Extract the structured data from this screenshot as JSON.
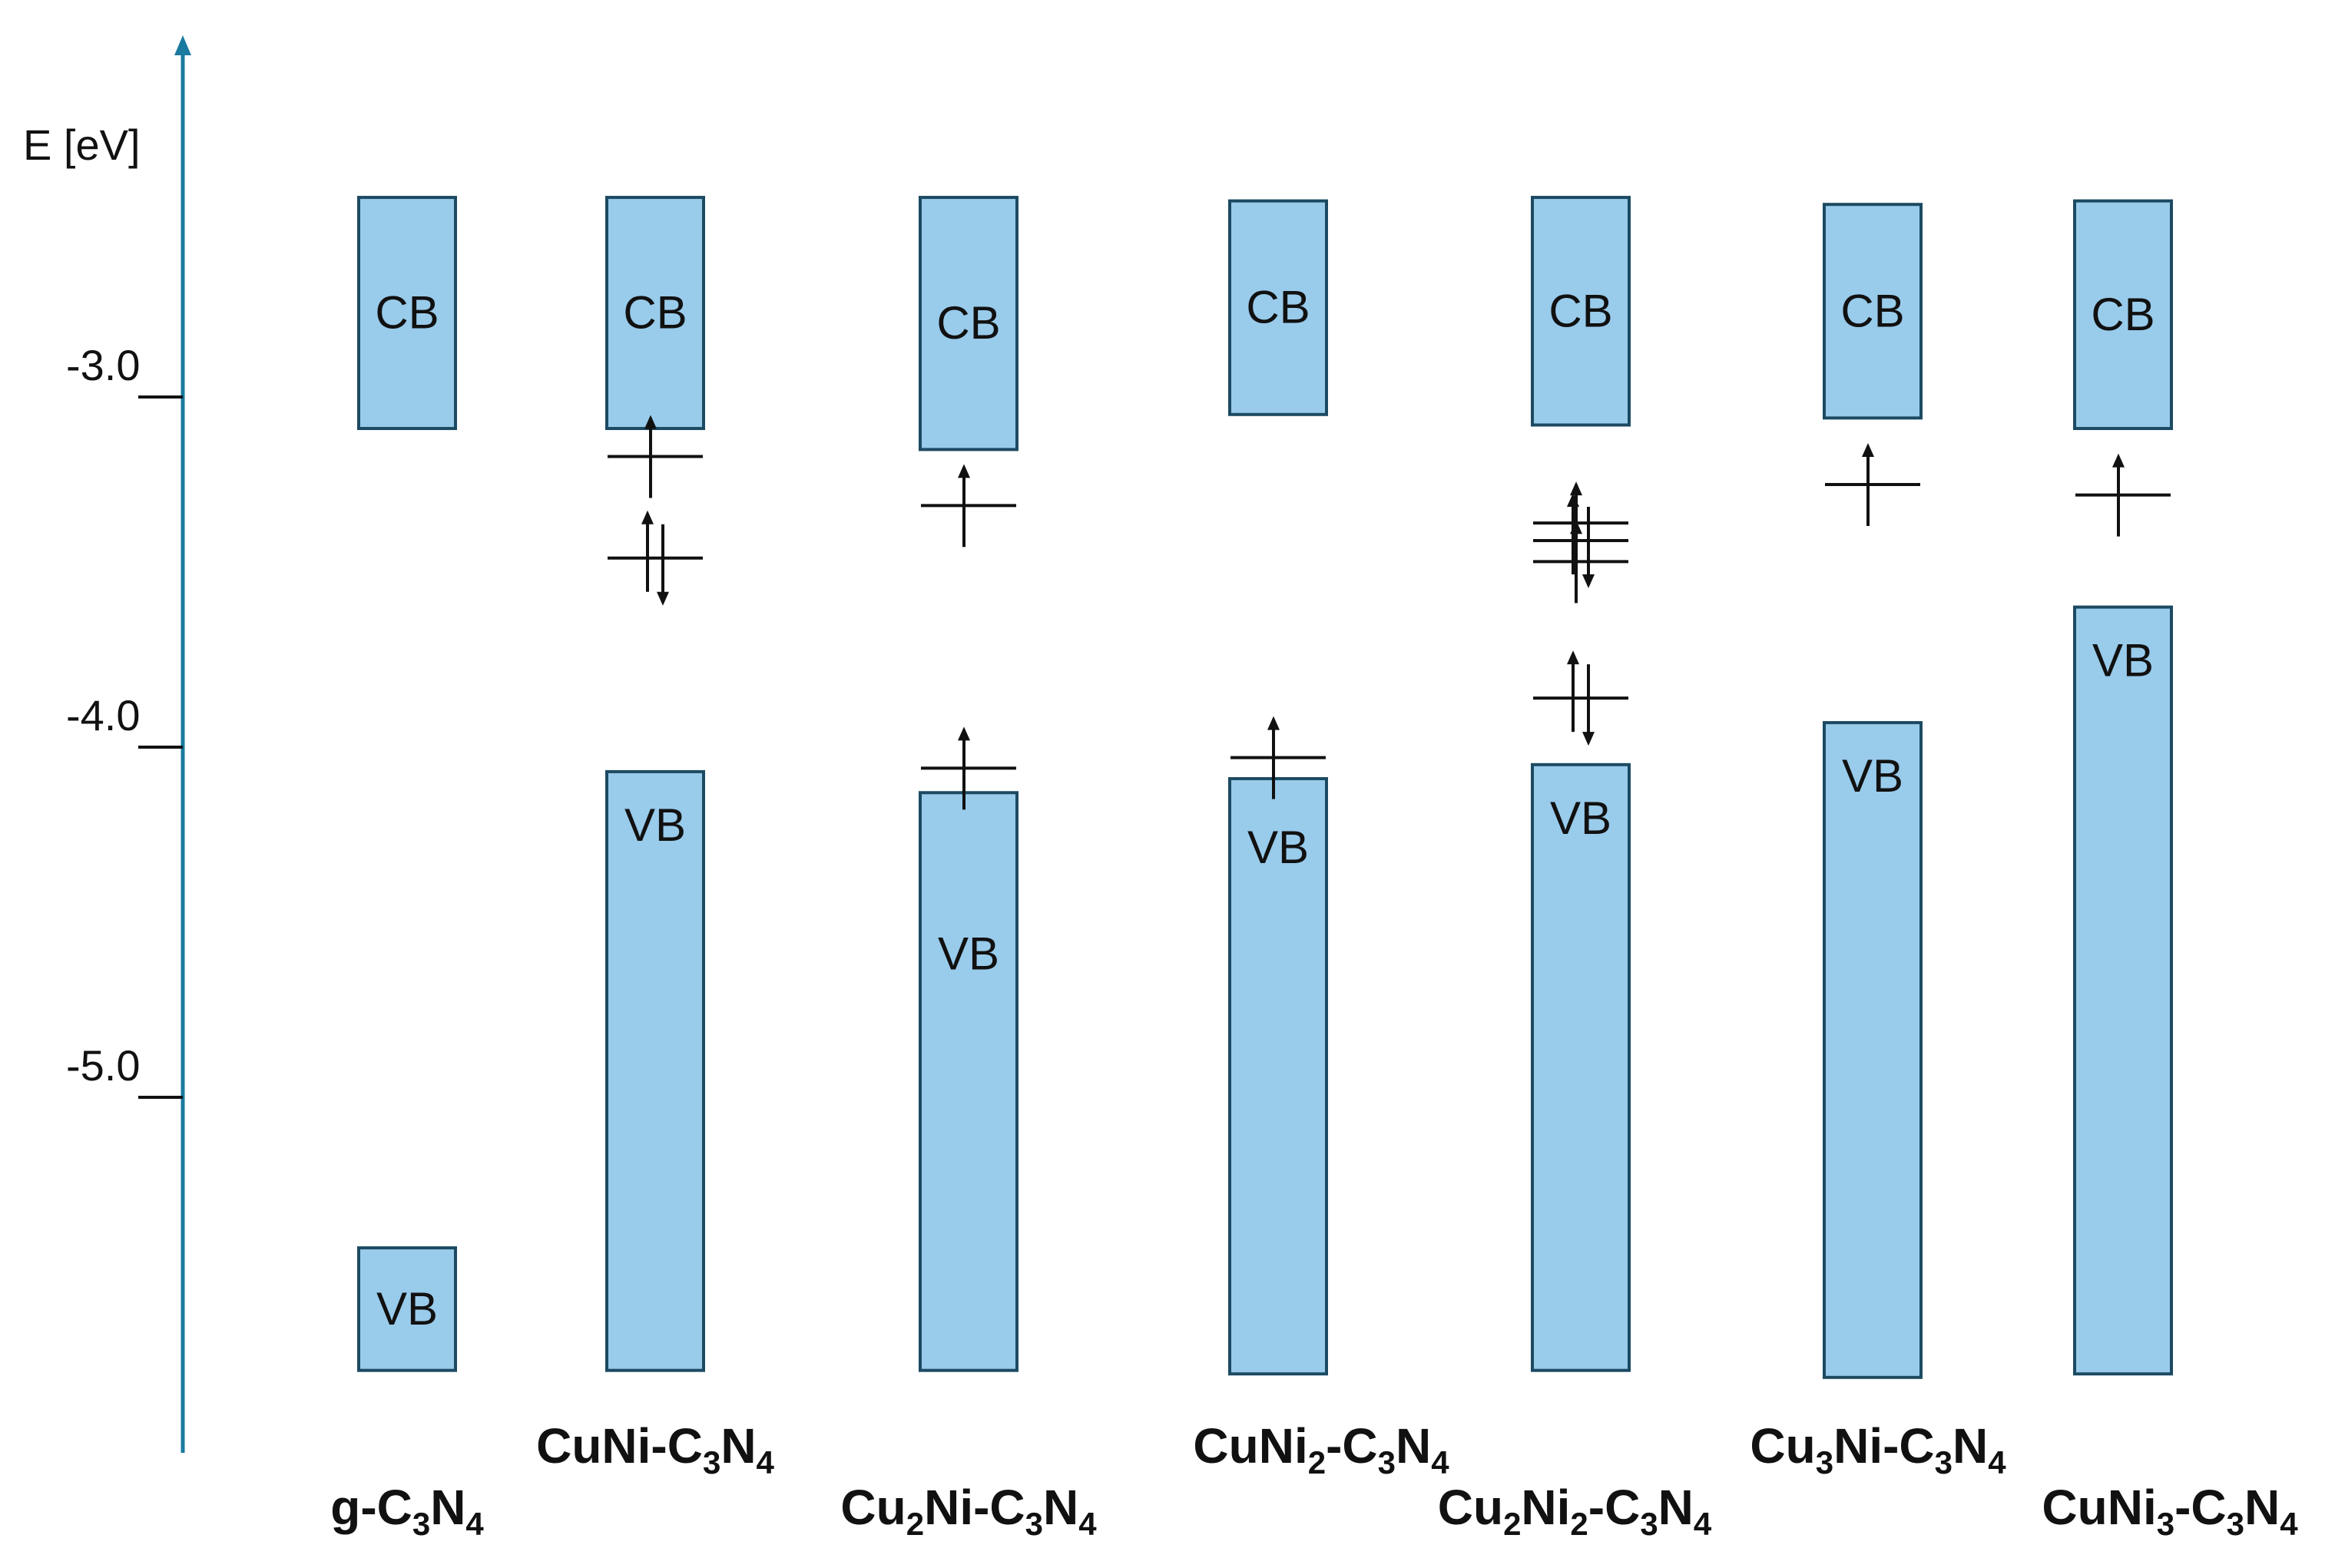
{
  "axis": {
    "label": "E [eV]",
    "color": "#1a7aa0",
    "ticks": [
      {
        "value": -3.0,
        "label": "-3.0"
      },
      {
        "value": -4.0,
        "label": "-4.0"
      },
      {
        "value": -5.0,
        "label": "-5.0"
      }
    ]
  },
  "colors": {
    "band_fill": "#99cbeb",
    "band_stroke": "#1c4a62",
    "level": "#111111"
  },
  "materials": [
    {
      "label": [
        {
          "t": "g-C"
        },
        {
          "t": "3",
          "sub": true
        },
        {
          "t": "N"
        },
        {
          "t": "4",
          "sub": true
        }
      ],
      "cb": {
        "label": "CB",
        "top": -2.43,
        "bottom": -3.09
      },
      "vb": {
        "label": "VB",
        "top": -5.43,
        "bottom": -5.78
      },
      "levels": []
    },
    {
      "label": [
        {
          "t": "CuNi-C"
        },
        {
          "t": "3",
          "sub": true
        },
        {
          "t": "N"
        },
        {
          "t": "4",
          "sub": true
        }
      ],
      "cb": {
        "label": "CB",
        "top": -2.43,
        "bottom": -3.09
      },
      "vb": {
        "label": "VB",
        "top": -4.07,
        "bottom": -5.78
      },
      "levels": [
        {
          "energy": -3.17,
          "spin": "up"
        },
        {
          "energy": -3.46,
          "spin": "pair"
        }
      ]
    },
    {
      "label": [
        {
          "t": "Cu"
        },
        {
          "t": "2",
          "sub": true
        },
        {
          "t": "Ni-C"
        },
        {
          "t": "3",
          "sub": true
        },
        {
          "t": "N"
        },
        {
          "t": "4",
          "sub": true
        }
      ],
      "cb": {
        "label": "CB",
        "top": -2.43,
        "bottom": -3.15
      },
      "vb": {
        "label": "VB",
        "top": -4.13,
        "bottom": -5.78
      },
      "levels": [
        {
          "energy": -3.31,
          "spin": "up"
        },
        {
          "energy": -4.06,
          "spin": "up"
        }
      ]
    },
    {
      "label": [
        {
          "t": "CuNi"
        },
        {
          "t": "2",
          "sub": true
        },
        {
          "t": "-C"
        },
        {
          "t": "3",
          "sub": true
        },
        {
          "t": "N"
        },
        {
          "t": "4",
          "sub": true
        }
      ],
      "cb": {
        "label": "CB",
        "top": -2.44,
        "bottom": -3.05
      },
      "vb": {
        "label": "VB",
        "top": -4.09,
        "bottom": -5.79
      },
      "levels": [
        {
          "energy": -4.03,
          "spin": "up"
        }
      ]
    },
    {
      "label": [
        {
          "t": "Cu"
        },
        {
          "t": "2",
          "sub": true
        },
        {
          "t": "Ni"
        },
        {
          "t": "2",
          "sub": true
        },
        {
          "t": "-C"
        },
        {
          "t": "3",
          "sub": true
        },
        {
          "t": "N"
        },
        {
          "t": "4",
          "sub": true
        }
      ],
      "cb": {
        "label": "CB",
        "top": -2.43,
        "bottom": -3.08
      },
      "vb": {
        "label": "VB",
        "top": -4.05,
        "bottom": -5.78
      },
      "levels": [
        {
          "energy": -3.36,
          "spin": "up"
        },
        {
          "energy": -3.41,
          "spin": "pair"
        },
        {
          "energy": -3.47,
          "spin": "up"
        },
        {
          "energy": -3.86,
          "spin": "pair"
        }
      ]
    },
    {
      "label": [
        {
          "t": "Cu"
        },
        {
          "t": "3",
          "sub": true
        },
        {
          "t": "Ni-C"
        },
        {
          "t": "3",
          "sub": true
        },
        {
          "t": "N"
        },
        {
          "t": "4",
          "sub": true
        }
      ],
      "cb": {
        "label": "CB",
        "top": -2.45,
        "bottom": -3.06
      },
      "vb": {
        "label": "VB",
        "top": -3.93,
        "bottom": -5.8
      },
      "levels": [
        {
          "energy": -3.25,
          "spin": "up"
        }
      ]
    },
    {
      "label": [
        {
          "t": "CuNi"
        },
        {
          "t": "3",
          "sub": true
        },
        {
          "t": "-C"
        },
        {
          "t": "3",
          "sub": true
        },
        {
          "t": "N"
        },
        {
          "t": "4",
          "sub": true
        }
      ],
      "cb": {
        "label": "CB",
        "top": -2.44,
        "bottom": -3.09
      },
      "vb": {
        "label": "VB",
        "top": -3.6,
        "bottom": -5.79
      },
      "levels": [
        {
          "energy": -3.28,
          "spin": "up"
        }
      ]
    }
  ]
}
